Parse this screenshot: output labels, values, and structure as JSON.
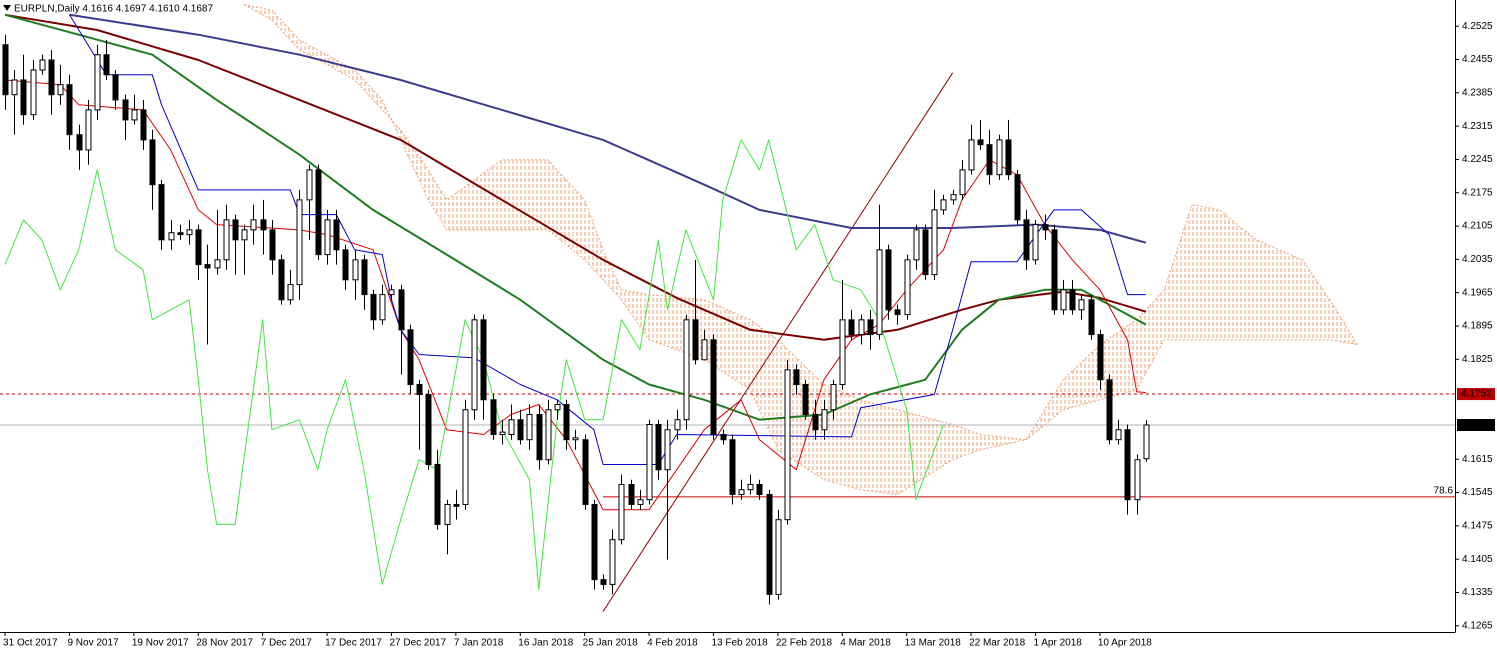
{
  "chart_data": {
    "type": "candlestick",
    "title": "EURPLN,Daily  4.1616 4.1697 4.1610 4.1687",
    "candle_colors": {
      "up": "#ffffff",
      "down": "#000000"
    },
    "ohlc": [
      [
        4.2486,
        4.2507,
        4.2349,
        4.2381
      ],
      [
        4.2381,
        4.2433,
        4.2297,
        4.2412
      ],
      [
        4.2412,
        4.2465,
        4.2318,
        4.2339
      ],
      [
        4.2339,
        4.2454,
        4.2328,
        4.2433
      ],
      [
        4.2433,
        4.2465,
        4.2423,
        4.2454
      ],
      [
        4.2454,
        4.2475,
        4.2339,
        4.2381
      ],
      [
        4.2381,
        4.2444,
        4.236,
        4.2402
      ],
      [
        4.2402,
        4.2423,
        4.2265,
        4.2297
      ],
      [
        4.2297,
        4.2318,
        4.2223,
        4.2265
      ],
      [
        4.2265,
        4.237,
        4.2234,
        4.2349
      ],
      [
        4.2349,
        4.2486,
        4.2328,
        4.2465
      ],
      [
        4.2465,
        4.2496,
        4.2412,
        4.2423
      ],
      [
        4.2423,
        4.2433,
        4.2349,
        4.237
      ],
      [
        4.237,
        4.2381,
        4.2286,
        4.2328
      ],
      [
        4.2328,
        4.2381,
        4.2318,
        4.2349
      ],
      [
        4.2349,
        4.237,
        4.2265,
        4.2286
      ],
      [
        4.2286,
        4.2307,
        4.2139,
        4.2192
      ],
      [
        4.2192,
        4.2202,
        4.2055,
        4.2076
      ],
      [
        4.2076,
        4.2118,
        4.2055,
        4.2091
      ],
      [
        4.2091,
        4.2108,
        4.2076,
        4.2087
      ],
      [
        4.2087,
        4.2118,
        4.2066,
        4.2097
      ],
      [
        4.2097,
        4.2108,
        4.1992,
        4.2024
      ],
      [
        4.2024,
        4.2066,
        4.1856,
        4.2017
      ],
      [
        4.2017,
        4.2139,
        4.2003,
        4.2034
      ],
      [
        4.2034,
        4.215,
        4.2013,
        4.2118
      ],
      [
        4.2118,
        4.2129,
        4.2003,
        4.2076
      ],
      [
        4.2076,
        4.2108,
        4.2003,
        4.2097
      ],
      [
        4.2097,
        4.215,
        4.2066,
        4.2118
      ],
      [
        4.2118,
        4.216,
        4.2045,
        4.2097
      ],
      [
        4.2097,
        4.2118,
        4.2003,
        4.2034
      ],
      [
        4.2034,
        4.2045,
        4.194,
        4.195
      ],
      [
        4.195,
        4.2013,
        4.194,
        4.1982
      ],
      [
        4.1982,
        4.2181,
        4.195,
        4.216
      ],
      [
        4.216,
        4.2234,
        4.2076,
        4.2223
      ],
      [
        4.2223,
        4.2234,
        4.2034,
        4.2045
      ],
      [
        4.2045,
        4.2139,
        4.2024,
        4.2118
      ],
      [
        4.2118,
        4.2139,
        4.2024,
        4.2055
      ],
      [
        4.2055,
        4.2066,
        4.1971,
        4.1992
      ],
      [
        4.1992,
        4.2055,
        4.195,
        4.2034
      ],
      [
        4.2034,
        4.2045,
        4.1929,
        4.1961
      ],
      [
        4.1961,
        4.1971,
        4.1887,
        4.1908
      ],
      [
        4.1908,
        4.1982,
        4.1898,
        4.1961
      ],
      [
        4.1961,
        4.1982,
        4.195,
        4.1971
      ],
      [
        4.1971,
        4.1982,
        4.1793,
        4.1887
      ],
      [
        4.1887,
        4.1898,
        4.1751,
        4.1772
      ],
      [
        4.1772,
        4.1782,
        4.1635,
        4.1751
      ],
      [
        4.1751,
        4.1761,
        4.1593,
        4.1604
      ],
      [
        4.1604,
        4.1635,
        4.1467,
        4.1478
      ],
      [
        4.1478,
        4.153,
        4.1415,
        4.152
      ],
      [
        4.152,
        4.1551,
        4.1488,
        4.1516
      ],
      [
        4.152,
        4.174,
        4.1509,
        4.1719
      ],
      [
        4.1719,
        4.1919,
        4.1698,
        4.1908
      ],
      [
        4.1908,
        4.1919,
        4.1698,
        4.174
      ],
      [
        4.174,
        4.1751,
        4.1656,
        4.1667
      ],
      [
        4.1667,
        4.1698,
        4.1646,
        4.1672
      ],
      [
        4.1667,
        4.173,
        4.1656,
        4.1698
      ],
      [
        4.1698,
        4.1719,
        4.1646,
        4.1656
      ],
      [
        4.1656,
        4.173,
        4.1635,
        4.1709
      ],
      [
        4.1709,
        4.173,
        4.1593,
        4.1614
      ],
      [
        4.1614,
        4.174,
        4.1604,
        4.1719
      ],
      [
        4.1719,
        4.174,
        4.1698,
        4.173
      ],
      [
        4.173,
        4.174,
        4.1635,
        4.1656
      ],
      [
        4.1656,
        4.1677,
        4.1635,
        4.166
      ],
      [
        4.1656,
        4.1667,
        4.1509,
        4.152
      ],
      [
        4.152,
        4.153,
        4.1341,
        4.1362
      ],
      [
        4.1362,
        4.1373,
        4.1341,
        4.1352
      ],
      [
        4.1352,
        4.1467,
        4.1331,
        4.1446
      ],
      [
        4.1446,
        4.1583,
        4.1436,
        4.1562
      ],
      [
        4.1562,
        4.1572,
        4.1509,
        4.152
      ],
      [
        4.152,
        4.1551,
        4.1509,
        4.153
      ],
      [
        4.153,
        4.1698,
        4.152,
        4.1688
      ],
      [
        4.1688,
        4.1698,
        4.1572,
        4.1593
      ],
      [
        4.1593,
        4.1698,
        4.1404,
        4.1677
      ],
      [
        4.1677,
        4.1719,
        4.1656,
        4.1698
      ],
      [
        4.1698,
        4.1919,
        4.1677,
        4.1908
      ],
      [
        4.1908,
        4.2034,
        4.1814,
        4.1824
      ],
      [
        4.1824,
        4.1887,
        4.1824,
        4.1866
      ],
      [
        4.1866,
        4.1877,
        4.1656,
        4.1667
      ],
      [
        4.1667,
        4.1677,
        4.1646,
        4.1656
      ],
      [
        4.1656,
        4.1667,
        4.152,
        4.1541
      ],
      [
        4.1541,
        4.1572,
        4.153,
        4.1551
      ],
      [
        4.1551,
        4.1583,
        4.1541,
        4.1562
      ],
      [
        4.1562,
        4.1572,
        4.153,
        4.1541
      ],
      [
        4.1541,
        4.1551,
        4.131,
        4.1331
      ],
      [
        4.1331,
        4.1509,
        4.132,
        4.1488
      ],
      [
        4.1488,
        4.1824,
        4.1478,
        4.1803
      ],
      [
        4.1803,
        4.1814,
        4.1751,
        4.1772
      ],
      [
        4.1772,
        4.1782,
        4.1698,
        4.1709
      ],
      [
        4.1709,
        4.174,
        4.1656,
        4.1677
      ],
      [
        4.1677,
        4.174,
        4.1656,
        4.1719
      ],
      [
        4.1719,
        4.1782,
        4.1698,
        4.1772
      ],
      [
        4.1772,
        4.1992,
        4.1761,
        4.1908
      ],
      [
        4.1908,
        4.1929,
        4.1866,
        4.1877
      ],
      [
        4.1877,
        4.1919,
        4.1856,
        4.1908
      ],
      [
        4.1908,
        4.1929,
        4.1845,
        4.1877
      ],
      [
        4.1877,
        4.215,
        4.1866,
        4.2055
      ],
      [
        4.2055,
        4.2066,
        4.1908,
        4.1929
      ],
      [
        4.1929,
        4.194,
        4.1898,
        4.1919
      ],
      [
        4.1919,
        4.2045,
        4.1908,
        4.2034
      ],
      [
        4.2034,
        4.2108,
        4.2013,
        4.2097
      ],
      [
        4.2097,
        4.2108,
        4.1992,
        4.2003
      ],
      [
        4.2003,
        4.2181,
        4.1992,
        4.2139
      ],
      [
        4.2139,
        4.2171,
        4.2129,
        4.216
      ],
      [
        4.216,
        4.2181,
        4.215,
        4.2171
      ],
      [
        4.2171,
        4.2244,
        4.216,
        4.2223
      ],
      [
        4.2223,
        4.2318,
        4.2213,
        4.2286
      ],
      [
        4.2286,
        4.2328,
        4.2265,
        4.2276
      ],
      [
        4.2276,
        4.2307,
        4.2192,
        4.2213
      ],
      [
        4.2213,
        4.2297,
        4.2202,
        4.2286
      ],
      [
        4.2286,
        4.2328,
        4.2202,
        4.2213
      ],
      [
        4.2213,
        4.2223,
        4.2108,
        4.2118
      ],
      [
        4.2118,
        4.2139,
        4.2013,
        4.2034
      ],
      [
        4.2034,
        4.2118,
        4.2024,
        4.2108
      ],
      [
        4.2108,
        4.2129,
        4.2076,
        4.2097
      ],
      [
        4.2097,
        4.2108,
        4.1919,
        4.1929
      ],
      [
        4.1929,
        4.1992,
        4.1919,
        4.1971
      ],
      [
        4.1971,
        4.1992,
        4.1919,
        4.1929
      ],
      [
        4.1929,
        4.1961,
        4.1908,
        4.195
      ],
      [
        4.195,
        4.1961,
        4.1866,
        4.1877
      ],
      [
        4.1877,
        4.1887,
        4.1761,
        4.1782
      ],
      [
        4.1782,
        4.1793,
        4.1646,
        4.1656
      ],
      [
        4.1656,
        4.1698,
        4.1646,
        4.1677
      ],
      [
        4.1677,
        4.1688,
        4.1499,
        4.153
      ],
      [
        4.153,
        4.1625,
        4.1499,
        4.1614
      ],
      [
        4.1616,
        4.1697,
        4.161,
        4.1687
      ]
    ],
    "xlim": [
      -0.55,
      157.6
    ],
    "xticks": [
      {
        "value": 0,
        "label": "31 Oct 2017"
      },
      {
        "value": 7,
        "label": "9 Nov 2017"
      },
      {
        "value": 14,
        "label": "19 Nov 2017"
      },
      {
        "value": 21,
        "label": "28 Nov 2017"
      },
      {
        "value": 28,
        "label": "7 Dec 2017"
      },
      {
        "value": 35,
        "label": "17 Dec 2017"
      },
      {
        "value": 42,
        "label": "27 Dec 2017"
      },
      {
        "value": 49,
        "label": "7 Jan 2018"
      },
      {
        "value": 56,
        "label": "16 Jan 2018"
      },
      {
        "value": 63,
        "label": "25 Jan 2018"
      },
      {
        "value": 70,
        "label": "4 Feb 2018"
      },
      {
        "value": 77,
        "label": "13 Feb 2018"
      },
      {
        "value": 84,
        "label": "22 Feb 2018"
      },
      {
        "value": 91,
        "label": "4 Mar 2018"
      },
      {
        "value": 98,
        "label": "13 Mar 2018"
      },
      {
        "value": 105,
        "label": "22 Mar 2018"
      },
      {
        "value": 112,
        "label": "1 Apr 2018"
      },
      {
        "value": 119,
        "label": "10 Apr 2018"
      }
    ],
    "ylim": [
      4.1252,
      4.258
    ],
    "yticks": [
      4.2525,
      4.2455,
      4.2385,
      4.2315,
      4.2245,
      4.2175,
      4.2105,
      4.2035,
      4.1965,
      4.1895,
      4.1825,
      4.1615,
      4.1545,
      4.1475,
      4.1405,
      4.1335,
      4.1265
    ],
    "cloud": {
      "color": "#f0a070",
      "x": [
        26,
        29,
        32,
        38,
        41,
        43,
        46,
        48,
        54,
        59,
        63,
        65,
        67,
        70,
        76,
        81,
        84,
        89,
        93,
        97,
        103,
        106,
        111,
        115,
        119,
        123,
        126,
        129,
        132,
        136,
        141,
        144,
        147
      ],
      "span_a": [
        4.257,
        4.2538,
        4.2475,
        4.2412,
        4.2349,
        4.2307,
        4.2223,
        4.216,
        4.2244,
        4.2244,
        4.216,
        4.2055,
        4.1971,
        4.1961,
        4.195,
        4.1908,
        4.1866,
        4.1772,
        4.174,
        4.1719,
        4.1688,
        4.1667,
        4.1656,
        4.1782,
        4.1856,
        4.1908,
        4.1971,
        4.215,
        4.2139,
        4.2076,
        4.2034,
        4.195,
        4.1856
      ],
      "span_b": [
        4.257,
        4.2559,
        4.2496,
        4.2433,
        4.237,
        4.2286,
        4.216,
        4.2097,
        4.2097,
        4.2097,
        4.2034,
        4.1992,
        4.195,
        4.1866,
        4.1824,
        4.1761,
        4.1635,
        4.1572,
        4.1551,
        4.1541,
        4.1614,
        4.1635,
        4.1656,
        4.1719,
        4.174,
        4.1761,
        4.1866,
        4.1866,
        4.1866,
        4.1866,
        4.1866,
        4.1866,
        4.1856
      ]
    },
    "lines": [
      {
        "color": "#3c3c8c",
        "width": 2,
        "x": [
          7,
          21,
          32,
          43,
          54,
          65,
          76,
          82,
          92,
          103,
          112,
          119,
          124
        ],
        "values": [
          4.2549,
          4.2507,
          4.2465,
          4.2412,
          4.2349,
          4.2286,
          4.2192,
          4.2139,
          4.2101,
          4.2101,
          4.2108,
          4.2097,
          4.207
        ]
      },
      {
        "color": "#7a0000",
        "width": 2,
        "x": [
          0,
          10,
          21,
          32,
          43,
          54,
          65,
          73,
          81,
          89,
          97,
          104,
          108,
          115,
          119,
          124
        ],
        "values": [
          4.2549,
          4.2517,
          4.2454,
          4.237,
          4.2286,
          4.216,
          4.2034,
          4.1954,
          4.1887,
          4.1866,
          4.1887,
          4.1929,
          4.195,
          4.1967,
          4.1954,
          4.1925
        ]
      },
      {
        "color": "#1e7d1e",
        "width": 2,
        "x": [
          0,
          8,
          16,
          23,
          32,
          40,
          48,
          56,
          65,
          70,
          76,
          82,
          89,
          94,
          100,
          104,
          108,
          113,
          117,
          120,
          124
        ],
        "values": [
          4.2549,
          4.2507,
          4.2465,
          4.237,
          4.2255,
          4.2139,
          4.2045,
          4.195,
          4.1824,
          4.1772,
          4.174,
          4.1698,
          4.1709,
          4.1751,
          4.1782,
          4.1887,
          4.195,
          4.1971,
          4.1971,
          4.194,
          4.1898
        ]
      },
      {
        "color": "#e00000",
        "width": 1,
        "x": [
          0,
          6,
          8,
          15,
          18,
          21,
          23,
          32,
          35,
          40,
          43,
          45,
          48,
          52,
          55,
          58,
          61,
          65,
          70,
          76,
          80,
          82,
          86,
          89,
          92,
          95,
          98,
          102,
          104,
          107,
          110,
          113,
          116,
          119,
          122,
          123,
          124
        ],
        "values": [
          4.2412,
          4.2402,
          4.236,
          4.2349,
          4.2265,
          4.2139,
          4.2108,
          4.2097,
          4.2087,
          4.2055,
          4.1887,
          4.1824,
          4.1677,
          4.1667,
          4.1709,
          4.173,
          4.1656,
          4.1509,
          4.1509,
          4.1677,
          4.174,
          4.1656,
          4.1593,
          4.1782,
          4.1866,
          4.1898,
          4.1971,
          4.2055,
          4.216,
          4.2244,
          4.2213,
          4.2108,
          4.2034,
          4.1971,
          4.1866,
          4.1757,
          4.1755
        ]
      },
      {
        "color": "#0000d0",
        "width": 1,
        "x": [
          7,
          11,
          16,
          17,
          21,
          31,
          32,
          36,
          38,
          41,
          42,
          43,
          45,
          51,
          56,
          60,
          64,
          65,
          71,
          73,
          92,
          93,
          101,
          103,
          105,
          110,
          114,
          117,
          120,
          122,
          124
        ],
        "values": [
          4.2549,
          4.2423,
          4.2423,
          4.236,
          4.2181,
          4.2181,
          4.2129,
          4.2129,
          4.2055,
          4.2045,
          4.195,
          4.1887,
          4.1835,
          4.1828,
          4.1772,
          4.174,
          4.1677,
          4.1604,
          4.1604,
          4.1667,
          4.1662,
          4.1723,
          4.1751,
          4.1887,
          4.203,
          4.203,
          4.2139,
          4.2139,
          4.2087,
          4.1961,
          4.1961
        ]
      },
      {
        "color": "#3fe83f",
        "width": 1,
        "x": [
          0,
          2,
          4,
          6,
          8,
          10,
          12,
          15,
          16,
          20,
          21,
          22,
          23,
          25,
          28,
          29,
          32,
          34,
          35,
          37,
          39,
          41,
          43,
          45,
          47,
          50,
          52,
          54,
          57,
          58,
          60,
          61,
          63,
          65,
          67,
          69,
          71,
          72,
          74,
          77,
          78,
          80,
          82,
          83,
          86,
          88,
          90,
          93,
          95,
          98,
          99,
          102
        ],
        "values": [
          4.2024,
          4.2118,
          4.2076,
          4.1971,
          4.2055,
          4.2223,
          4.2055,
          4.2013,
          4.1908,
          4.195,
          4.1782,
          4.1593,
          4.1478,
          4.1478,
          4.1908,
          4.1677,
          4.1698,
          4.1593,
          4.1677,
          4.1782,
          4.1593,
          4.1352,
          4.1488,
          4.1614,
          4.1593,
          4.1908,
          4.1824,
          4.1677,
          4.1572,
          4.1341,
          4.1698,
          4.1824,
          4.1698,
          4.1698,
          4.1908,
          4.1845,
          4.2076,
          4.1929,
          4.2097,
          4.195,
          4.216,
          4.2286,
          4.2223,
          4.2286,
          4.2055,
          4.2108,
          4.1992,
          4.1971,
          4.1908,
          4.1719,
          4.153,
          4.1688
        ]
      }
    ],
    "trendline": {
      "color": "#8b0000",
      "x": [
        65,
        103
      ],
      "values": [
        4.1295,
        4.2427
      ]
    },
    "fibo": {
      "color": "#c00000",
      "x": 65,
      "value": 4.1536,
      "label": "78.6"
    },
    "price_lines": [
      {
        "value": 4.1752,
        "color": "#c00000",
        "dashed": true
      },
      {
        "value": 4.1687,
        "color": "#000000",
        "dashed": false
      }
    ]
  }
}
